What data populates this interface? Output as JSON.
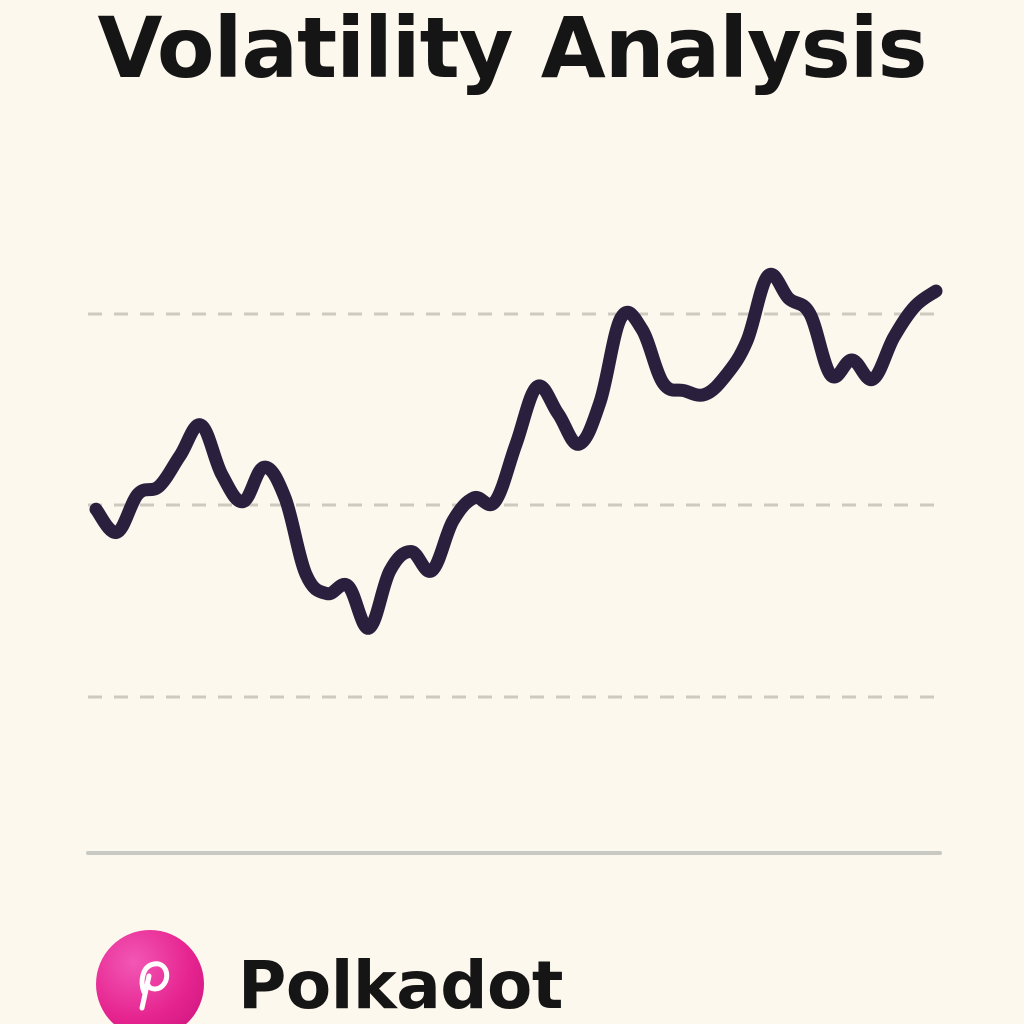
{
  "header": {
    "title": "Volatility Analysis"
  },
  "brand": {
    "name": "Polkadot",
    "logo_icon": "polkadot-p-logo-icon",
    "logo_color": "#e6248f"
  },
  "chart_data": {
    "type": "line",
    "title": "Volatility Analysis",
    "xlabel": "",
    "ylabel": "",
    "grid": true,
    "grid_style": "dashed-horizontal",
    "ylim": [
      0,
      100
    ],
    "line_color": "#2a1f3d",
    "x": [
      0,
      1,
      2,
      3,
      4,
      5,
      6,
      7,
      8,
      9,
      10,
      11,
      12,
      13,
      14,
      15,
      16,
      17,
      18,
      19,
      20,
      21,
      22,
      23,
      24,
      25,
      26,
      27,
      28,
      29,
      30,
      31,
      32,
      33,
      34,
      35,
      36,
      37,
      38,
      39,
      40
    ],
    "series": [
      {
        "values": [
          49,
          43,
          53,
          55,
          63,
          71,
          58,
          51,
          60,
          52,
          32,
          27,
          29,
          18,
          33,
          38,
          33,
          46,
          52,
          51,
          66,
          81,
          74,
          66,
          77,
          99,
          96,
          82,
          80,
          79,
          84,
          93,
          110,
          104,
          100,
          84,
          88,
          83,
          94,
          102,
          106
        ]
      }
    ]
  }
}
